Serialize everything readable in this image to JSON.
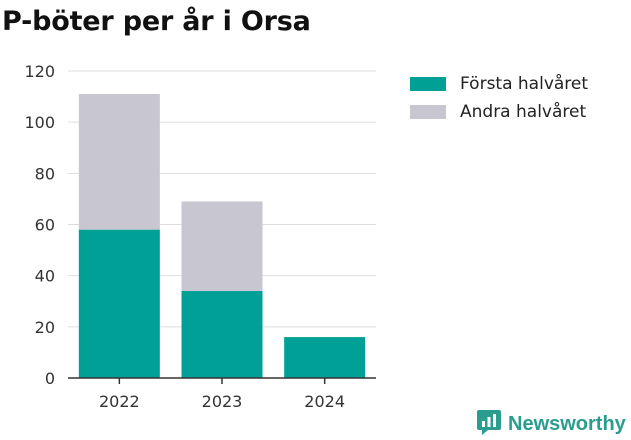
{
  "title": "P-böter per år i Orsa",
  "brand": {
    "name": "Newsworthy",
    "icon": "newsworthy-logo-icon",
    "color": "#2a9d8f"
  },
  "chart_data": {
    "type": "bar",
    "stacked": true,
    "title": "P-böter per år i Orsa",
    "categories": [
      "2022",
      "2023",
      "2024"
    ],
    "series": [
      {
        "name": "Första halvåret",
        "color": "#00a096",
        "values": [
          58,
          34,
          16
        ]
      },
      {
        "name": "Andra halvåret",
        "color": "#c7c6d1",
        "values": [
          53,
          35,
          0
        ]
      }
    ],
    "ylim": [
      0,
      120
    ],
    "yticks": [
      0,
      20,
      40,
      60,
      80,
      100,
      120
    ],
    "grid": true,
    "legend_position": "right"
  }
}
